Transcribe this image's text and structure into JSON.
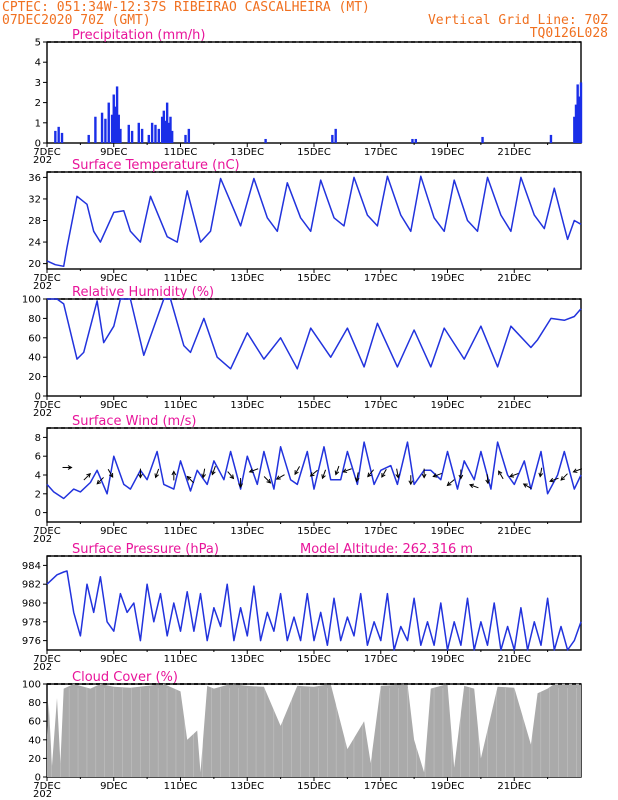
{
  "header": {
    "line1": "CPTEC:   051:34W-12:37S  RIBEIRAO CASCALHEIRA (MT)",
    "line2_left": "07DEC2020 70Z (GMT)",
    "line2_right": "Vertical Grid Line: 70Z",
    "line3_right": "TQ0126L028"
  },
  "x_ticks": [
    "7DEC",
    "9DEC",
    "11DEC",
    "13DEC",
    "15DEC",
    "17DEC",
    "19DEC",
    "21DEC"
  ],
  "x_tick_sub": "202",
  "colors": {
    "header": "#f07020",
    "title": "#e8149a",
    "line": "#2233dd",
    "bar": "#1a2ee8",
    "cloud": "#aaaaaa",
    "arrow": "#000000"
  },
  "chart_data": [
    {
      "name": "precip",
      "type": "bar",
      "title": "Precipitation (mm/h)",
      "ylim": [
        0,
        5
      ],
      "yticks": [
        0,
        1,
        2,
        3,
        4,
        5
      ],
      "x_range_days": [
        0,
        16
      ],
      "series": [
        {
          "name": "precipitation",
          "x": [
            0.25,
            0.35,
            0.45,
            1.25,
            1.45,
            1.65,
            1.75,
            1.85,
            1.95,
            2.0,
            2.05,
            2.1,
            2.15,
            2.2,
            2.45,
            2.55,
            2.75,
            2.85,
            3.05,
            3.15,
            3.25,
            3.35,
            3.45,
            3.5,
            3.55,
            3.6,
            3.65,
            3.7,
            3.75,
            4.15,
            4.25,
            6.55,
            8.55,
            8.65,
            10.95,
            11.05,
            13.05,
            15.1,
            15.8,
            15.85,
            15.9,
            15.95,
            16.0
          ],
          "values": [
            0.6,
            0.8,
            0.5,
            0.4,
            1.3,
            1.5,
            1.2,
            2.0,
            1.4,
            2.4,
            1.8,
            2.8,
            1.4,
            0.7,
            0.9,
            0.6,
            1.0,
            0.7,
            0.4,
            1.0,
            0.9,
            0.7,
            1.3,
            1.6,
            1.1,
            2.0,
            1.0,
            1.3,
            0.6,
            0.4,
            0.7,
            0.2,
            0.4,
            0.7,
            0.2,
            0.2,
            0.3,
            0.4,
            1.3,
            1.9,
            2.9,
            2.3,
            3.0
          ]
        }
      ]
    },
    {
      "name": "temperature",
      "type": "line",
      "title": "Surface Temperature (nC)",
      "ylim": [
        19,
        37
      ],
      "yticks": [
        20,
        24,
        28,
        32,
        36
      ],
      "series": [
        {
          "name": "temperature",
          "x": [
            0,
            0.25,
            0.5,
            0.6,
            0.9,
            1.2,
            1.4,
            1.6,
            2.0,
            2.3,
            2.5,
            2.8,
            3.1,
            3.6,
            3.9,
            4.2,
            4.6,
            4.9,
            5.2,
            5.6,
            5.8,
            6.2,
            6.6,
            6.9,
            7.2,
            7.6,
            7.9,
            8.2,
            8.6,
            8.9,
            9.2,
            9.6,
            9.9,
            10.2,
            10.6,
            10.9,
            11.2,
            11.6,
            11.9,
            12.2,
            12.6,
            12.9,
            13.2,
            13.6,
            13.9,
            14.2,
            14.6,
            14.9,
            15.2,
            15.6,
            15.8,
            16.0
          ],
          "values": [
            20.5,
            19.8,
            19.5,
            23,
            32.5,
            31,
            26,
            24,
            29.5,
            29.8,
            26,
            24,
            32.5,
            25,
            24,
            33.5,
            24,
            26,
            35.8,
            30,
            27,
            35.8,
            28.5,
            26,
            35,
            28.5,
            26,
            35.5,
            28.5,
            27,
            36,
            29,
            27,
            36.2,
            29,
            26,
            36.2,
            28.5,
            26,
            35.5,
            28,
            26,
            36,
            29,
            26,
            36,
            29,
            26.5,
            34,
            24.5,
            28,
            27.3
          ]
        }
      ]
    },
    {
      "name": "humidity",
      "type": "line",
      "title": "Relative Humidity (%)",
      "ylim": [
        0,
        100
      ],
      "yticks": [
        0,
        20,
        40,
        60,
        80,
        100
      ],
      "series": [
        {
          "name": "humidity",
          "x": [
            0,
            0.3,
            0.5,
            0.9,
            1.1,
            1.5,
            1.7,
            2.0,
            2.2,
            2.5,
            2.9,
            3.5,
            3.7,
            4.1,
            4.3,
            4.7,
            5.1,
            5.5,
            6.0,
            6.5,
            7.0,
            7.5,
            7.9,
            8.5,
            9.0,
            9.5,
            9.9,
            10.5,
            11.0,
            11.5,
            11.9,
            12.5,
            13.0,
            13.5,
            13.9,
            14.5,
            14.7,
            15.1,
            15.5,
            15.8,
            16.0
          ],
          "values": [
            100,
            100,
            95,
            38,
            45,
            98,
            55,
            72,
            100,
            100,
            42,
            100,
            100,
            52,
            45,
            80,
            40,
            28,
            65,
            38,
            60,
            28,
            70,
            40,
            70,
            30,
            75,
            30,
            68,
            30,
            70,
            38,
            72,
            30,
            72,
            50,
            58,
            80,
            78,
            82,
            90
          ]
        }
      ]
    },
    {
      "name": "wind",
      "type": "line",
      "title": "Surface Wind (m/s)",
      "ylim": [
        -1,
        9
      ],
      "yticks": [
        0,
        2,
        4,
        6,
        8
      ],
      "series": [
        {
          "name": "wind_speed",
          "x": [
            0,
            0.2,
            0.5,
            0.8,
            1.0,
            1.3,
            1.5,
            1.8,
            2.0,
            2.3,
            2.5,
            2.8,
            3.0,
            3.3,
            3.5,
            3.8,
            4.0,
            4.3,
            4.5,
            4.8,
            5.0,
            5.3,
            5.5,
            5.8,
            6.0,
            6.3,
            6.5,
            6.8,
            7.0,
            7.3,
            7.5,
            7.8,
            8.0,
            8.3,
            8.5,
            8.8,
            9.0,
            9.3,
            9.5,
            9.8,
            10.0,
            10.3,
            10.5,
            10.8,
            11.0,
            11.3,
            11.5,
            11.8,
            12.0,
            12.3,
            12.5,
            12.8,
            13.0,
            13.3,
            13.5,
            13.8,
            14.0,
            14.3,
            14.5,
            14.8,
            15.0,
            15.3,
            15.5,
            15.8,
            16.0
          ],
          "values": [
            3,
            2.2,
            1.5,
            2.5,
            2.2,
            3.2,
            4.5,
            2,
            6,
            3,
            2.5,
            4.5,
            3.5,
            6.5,
            3,
            2.5,
            5.5,
            2.3,
            4.5,
            3,
            5.5,
            3.5,
            6.5,
            2.5,
            6,
            3,
            6.5,
            2.5,
            7,
            3.5,
            3,
            6.5,
            2.5,
            7,
            3.5,
            3.5,
            6.5,
            3,
            7.5,
            3,
            4.5,
            5,
            3,
            7.5,
            3,
            4.5,
            4.5,
            3.5,
            6.5,
            2.5,
            5.5,
            3.5,
            6.5,
            2.5,
            7.5,
            4,
            3,
            5.5,
            2.5,
            6.5,
            2,
            4,
            6.5,
            2.5,
            4
          ]
        }
      ],
      "arrows": {
        "x": [
          0.6,
          1.2,
          1.6,
          1.9,
          2.8,
          3.3,
          3.8,
          4.3,
          4.7,
          5.0,
          5.5,
          5.8,
          6.2,
          6.6,
          7.0,
          7.5,
          8.0,
          8.3,
          8.7,
          9.0,
          9.3,
          9.7,
          10.1,
          10.5,
          10.9,
          11.3,
          11.7,
          12.1,
          12.4,
          12.8,
          13.2,
          13.6,
          14.0,
          14.4,
          14.8,
          15.2,
          15.5,
          15.9
        ],
        "dir_deg": [
          0,
          45,
          225,
          300,
          270,
          250,
          90,
          135,
          260,
          250,
          310,
          270,
          200,
          315,
          210,
          240,
          220,
          250,
          250,
          200,
          260,
          230,
          240,
          280,
          270,
          270,
          200,
          220,
          270,
          160,
          275,
          120,
          200,
          150,
          260,
          200,
          225,
          200
        ],
        "level": [
          4.8,
          3.8,
          3.4,
          4.2,
          4.2,
          4.2,
          3.9,
          3.5,
          4.2,
          4.5,
          4.0,
          3.2,
          4.5,
          3.5,
          3.8,
          4.5,
          4.2,
          4.1,
          4.5,
          4.5,
          3.8,
          4.2,
          4.2,
          4.2,
          3.5,
          4.2,
          4.0,
          3.2,
          4.1,
          2.8,
          3.6,
          4.0,
          4.0,
          2.8,
          4.3,
          3.5,
          3.8,
          4.5
        ]
      }
    },
    {
      "name": "pressure",
      "type": "line",
      "title": "Surface Pressure (hPa)",
      "subtitle": "Model Altitude: 262.316  m",
      "ylim": [
        975,
        985
      ],
      "yticks": [
        976,
        978,
        980,
        982,
        984
      ],
      "series": [
        {
          "name": "pressure",
          "x": [
            0,
            0.3,
            0.5,
            0.6,
            0.8,
            1.0,
            1.2,
            1.4,
            1.6,
            1.8,
            2.0,
            2.2,
            2.4,
            2.6,
            2.8,
            3.0,
            3.2,
            3.4,
            3.6,
            3.8,
            4.0,
            4.2,
            4.4,
            4.6,
            4.8,
            5.0,
            5.2,
            5.4,
            5.6,
            5.8,
            6.0,
            6.2,
            6.4,
            6.6,
            6.8,
            7.0,
            7.2,
            7.4,
            7.6,
            7.8,
            8.0,
            8.2,
            8.4,
            8.6,
            8.8,
            9.0,
            9.2,
            9.4,
            9.6,
            9.8,
            10.0,
            10.2,
            10.4,
            10.6,
            10.8,
            11.0,
            11.2,
            11.4,
            11.6,
            11.8,
            12.0,
            12.2,
            12.4,
            12.6,
            12.8,
            13.0,
            13.2,
            13.4,
            13.6,
            13.8,
            14.0,
            14.2,
            14.4,
            14.6,
            14.8,
            15.0,
            15.2,
            15.4,
            15.6,
            15.8,
            16.0
          ],
          "values": [
            982,
            983,
            983.3,
            983.4,
            979,
            976.5,
            982,
            979,
            982.8,
            978,
            977,
            981,
            979,
            980,
            976,
            982,
            978,
            981,
            976.5,
            980,
            977,
            981.2,
            977,
            981,
            976,
            979.5,
            977.5,
            982,
            976,
            979.5,
            976.5,
            981.8,
            976,
            979,
            977,
            981,
            976,
            978.5,
            976,
            981,
            976,
            979,
            975.5,
            980.5,
            976,
            978.5,
            976.5,
            981,
            975.5,
            978,
            976,
            981,
            975,
            977.5,
            976,
            980.5,
            975.5,
            978,
            975.5,
            980,
            975,
            978,
            975.5,
            980.5,
            975,
            978,
            975.5,
            980,
            975,
            977.5,
            975,
            979.5,
            975,
            978,
            975.5,
            980.5,
            975,
            977.5,
            975,
            976,
            978
          ]
        }
      ]
    },
    {
      "name": "cloud",
      "type": "area",
      "title": "Cloud Cover (%)",
      "ylim": [
        0,
        100
      ],
      "yticks": [
        0,
        20,
        40,
        60,
        80,
        100
      ],
      "series": [
        {
          "name": "cloud_cover",
          "x": [
            0,
            0.05,
            0.15,
            0.3,
            0.4,
            0.5,
            0.8,
            1.0,
            1.3,
            1.6,
            2.0,
            2.5,
            3.0,
            3.5,
            4.0,
            4.2,
            4.5,
            4.6,
            4.8,
            5.0,
            5.5,
            6.0,
            6.5,
            7.0,
            7.5,
            8.0,
            8.5,
            9.0,
            9.5,
            9.7,
            10.0,
            10.5,
            10.8,
            11.0,
            11.3,
            11.5,
            12.0,
            12.2,
            12.5,
            12.8,
            13.0,
            13.5,
            14.0,
            14.5,
            14.7,
            15.0,
            15.2,
            15.5,
            16.0
          ],
          "values": [
            45,
            80,
            12,
            85,
            15,
            95,
            100,
            98,
            95,
            100,
            97,
            96,
            98,
            100,
            92,
            40,
            50,
            5,
            98,
            95,
            100,
            98,
            97,
            55,
            98,
            97,
            100,
            30,
            60,
            15,
            98,
            99,
            100,
            40,
            5,
            95,
            100,
            10,
            98,
            95,
            20,
            97,
            96,
            35,
            90,
            95,
            100,
            100,
            100
          ]
        }
      ]
    }
  ]
}
